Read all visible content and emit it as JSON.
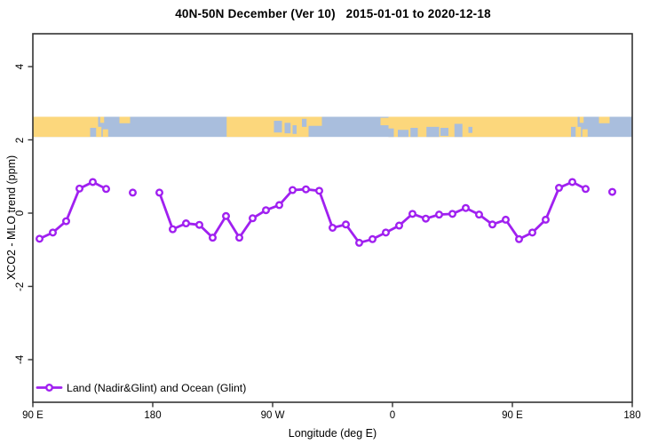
{
  "title": "40N-50N December (Ver 10)   2015-01-01 to 2020-12-18",
  "colors": {
    "series_purple": "#A020F0",
    "marker_fill": "#ffffff",
    "land_yellow": "#FCD77C",
    "ocean_blue": "#A9BEDD",
    "axis_frame": "#333333",
    "text": "#000000",
    "background": "#ffffff"
  },
  "legend": {
    "position": "bottom-left",
    "entries": [
      {
        "label": "Land (Nadir&Glint) and Ocean (Glint)",
        "color": "#A020F0",
        "marker": "open-circle-on-line"
      }
    ]
  },
  "chart_data": {
    "type": "line",
    "title": "40N-50N December (Ver 10)   2015-01-01 to 2020-12-18",
    "xlabel": "Longitude (deg E)",
    "ylabel": "XCO2 - MLO trend (ppm)",
    "xlim": [
      90,
      540
    ],
    "ylim": [
      -5,
      5
    ],
    "grid": "off",
    "x_axis_note": "longitude wraps: 90E to 180, 90W, 0, 90E, 180",
    "x_ticks": [
      {
        "pos": 90,
        "label": "90 E"
      },
      {
        "pos": 180,
        "label": "180"
      },
      {
        "pos": 270,
        "label": "90 W"
      },
      {
        "pos": 360,
        "label": "0"
      },
      {
        "pos": 450,
        "label": "90 E"
      },
      {
        "pos": 540,
        "label": "180"
      }
    ],
    "y_ticks": [
      {
        "pos": 4,
        "label": "4"
      },
      {
        "pos": 2,
        "label": "2"
      },
      {
        "pos": 0,
        "label": "0"
      },
      {
        "pos": -2,
        "label": "-2"
      },
      {
        "pos": -4,
        "label": "-4"
      }
    ],
    "series": [
      {
        "name": "Land (Nadir&Glint) and Ocean (Glint)",
        "color": "#A020F0",
        "marker": "open-circle",
        "points": [
          {
            "lon": 95,
            "value": -0.7
          },
          {
            "lon": 105,
            "value": -0.53
          },
          {
            "lon": 115,
            "value": -0.22
          },
          {
            "lon": 125,
            "value": 0.67
          },
          {
            "lon": 135,
            "value": 0.85
          },
          {
            "lon": 145,
            "value": 0.66
          },
          {
            "lon": 155,
            "value": null
          },
          {
            "lon": 165,
            "value": 0.56
          },
          {
            "lon": 175,
            "value": null
          },
          {
            "lon": 185,
            "value": 0.56
          },
          {
            "lon": 195,
            "value": -0.44
          },
          {
            "lon": 205,
            "value": -0.28
          },
          {
            "lon": 215,
            "value": -0.32
          },
          {
            "lon": 225,
            "value": -0.67
          },
          {
            "lon": 235,
            "value": -0.08
          },
          {
            "lon": 245,
            "value": -0.67
          },
          {
            "lon": 255,
            "value": -0.14
          },
          {
            "lon": 265,
            "value": 0.08
          },
          {
            "lon": 275,
            "value": 0.22
          },
          {
            "lon": 285,
            "value": 0.63
          },
          {
            "lon": 295,
            "value": 0.65
          },
          {
            "lon": 305,
            "value": 0.61
          },
          {
            "lon": 315,
            "value": -0.4
          },
          {
            "lon": 325,
            "value": -0.31
          },
          {
            "lon": 335,
            "value": -0.81
          },
          {
            "lon": 345,
            "value": -0.71
          },
          {
            "lon": 355,
            "value": -0.53
          },
          {
            "lon": 365,
            "value": -0.34
          },
          {
            "lon": 375,
            "value": -0.02
          },
          {
            "lon": 385,
            "value": -0.15
          },
          {
            "lon": 395,
            "value": -0.04
          },
          {
            "lon": 405,
            "value": -0.02
          },
          {
            "lon": 415,
            "value": 0.14
          },
          {
            "lon": 425,
            "value": -0.04
          },
          {
            "lon": 435,
            "value": -0.31
          },
          {
            "lon": 445,
            "value": -0.18
          },
          {
            "lon": 455,
            "value": -0.71
          },
          {
            "lon": 465,
            "value": -0.53
          },
          {
            "lon": 475,
            "value": -0.18
          },
          {
            "lon": 485,
            "value": 0.69
          },
          {
            "lon": 495,
            "value": 0.85
          },
          {
            "lon": 505,
            "value": 0.66
          },
          {
            "lon": 515,
            "value": null
          },
          {
            "lon": 525,
            "value": 0.58
          },
          {
            "lon": 535,
            "value": null
          }
        ]
      }
    ],
    "map_band": {
      "description": "40N-50N world coastline strip drawn across plot",
      "y_top": 2.63,
      "y_bottom": 2.08,
      "land_color": "#FCD77C",
      "ocean_color": "#A9BEDD",
      "land": [
        {
          "x0": 90,
          "x1": 133,
          "y0": 0,
          "y1": 1
        },
        {
          "x0": 133,
          "x1": 139,
          "y0": 0,
          "y1": 0.55
        },
        {
          "x0": 137.5,
          "x1": 141.5,
          "y0": 0.5,
          "y1": 1
        },
        {
          "x0": 142.5,
          "x1": 146.5,
          "y0": 0.62,
          "y1": 1
        },
        {
          "x0": 140.5,
          "x1": 143.5,
          "y0": 0,
          "y1": 0.3
        },
        {
          "x0": 155,
          "x1": 163,
          "y0": 0,
          "y1": 0.32
        },
        {
          "x0": 235.5,
          "x1": 297,
          "y0": 0,
          "y1": 1
        },
        {
          "x0": 297,
          "x1": 307,
          "y0": 0,
          "y1": 0.45
        },
        {
          "x0": 351,
          "x1": 357.5,
          "y0": 0.05,
          "y1": 0.42
        },
        {
          "x0": 357,
          "x1": 494,
          "y0": 0,
          "y1": 1
        },
        {
          "x0": 494,
          "x1": 499,
          "y0": 0,
          "y1": 0.5
        },
        {
          "x0": 497.5,
          "x1": 501.5,
          "y0": 0.5,
          "y1": 1
        },
        {
          "x0": 502.5,
          "x1": 506.5,
          "y0": 0.62,
          "y1": 1
        },
        {
          "x0": 500.5,
          "x1": 503.5,
          "y0": 0,
          "y1": 0.3
        },
        {
          "x0": 515,
          "x1": 523,
          "y0": 0,
          "y1": 0.32
        }
      ],
      "water": [
        {
          "x0": 271,
          "x1": 277,
          "y0": 0.2,
          "y1": 0.78
        },
        {
          "x0": 279,
          "x1": 283.5,
          "y0": 0.3,
          "y1": 0.82
        },
        {
          "x0": 285,
          "x1": 288,
          "y0": 0.42,
          "y1": 0.85
        },
        {
          "x0": 292,
          "x1": 295.5,
          "y0": 0.1,
          "y1": 0.5
        },
        {
          "x0": 357,
          "x1": 361,
          "y0": 0.58,
          "y1": 1
        },
        {
          "x0": 364,
          "x1": 372,
          "y0": 0.65,
          "y1": 1
        },
        {
          "x0": 373.5,
          "x1": 379,
          "y0": 0.55,
          "y1": 1
        },
        {
          "x0": 385.5,
          "x1": 395,
          "y0": 0.5,
          "y1": 1
        },
        {
          "x0": 396,
          "x1": 402,
          "y0": 0.55,
          "y1": 0.95
        },
        {
          "x0": 406.5,
          "x1": 412.5,
          "y0": 0.35,
          "y1": 1
        },
        {
          "x0": 417,
          "x1": 420,
          "y0": 0.5,
          "y1": 0.8
        }
      ]
    }
  }
}
